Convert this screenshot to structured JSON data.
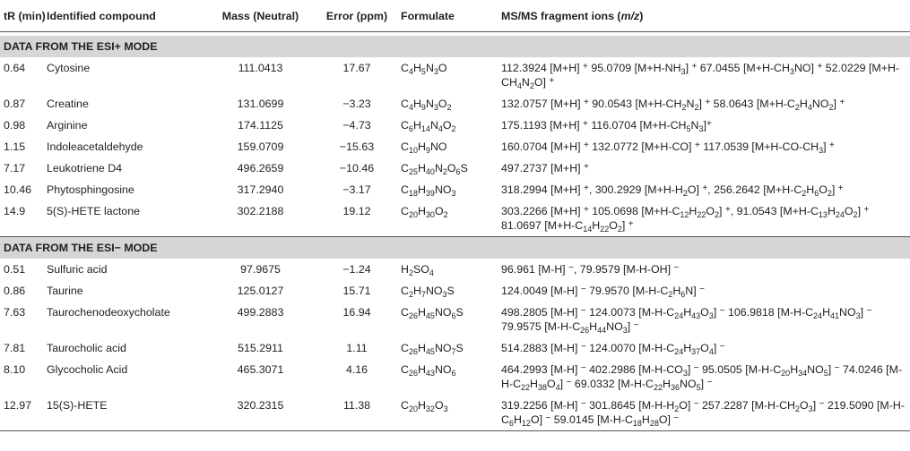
{
  "headers": {
    "tr": "tR (min)",
    "compound": "Identified compound",
    "mass": "Mass (Neutral)",
    "error": "Error (ppm)",
    "formulate": "Formulate",
    "fragments": "MS/MS fragment ions (m/z)"
  },
  "sections": [
    {
      "title": "DATA FROM THE ESI+ MODE",
      "rows": [
        {
          "tr": "0.64",
          "compound": "Cytosine",
          "mass": "111.0413",
          "error": "17.67",
          "formula": "C4H5N3O",
          "fragments": "112.3924 [M+H] + 95.0709 [M+H-NH3] + 67.0455 [M+H-CH3NO] + 52.0229 [M+H-CH4N2O] +"
        },
        {
          "tr": "0.87",
          "compound": "Creatine",
          "mass": "131.0699",
          "error": "−3.23",
          "formula": "C4H9N3O2",
          "fragments": "132.0757 [M+H] + 90.0543 [M+H-CH2N2] + 58.0643 [M+H-C2H4NO2] +"
        },
        {
          "tr": "0.98",
          "compound": "Arginine",
          "mass": "174.1125",
          "error": "−4.73",
          "formula": "C6H14N4O2",
          "fragments": "175.1193 [M+H] + 116.0704 [M+H-CH5N3]+"
        },
        {
          "tr": "1.15",
          "compound": "Indoleacetaldehyde",
          "mass": "159.0709",
          "error": "−15.63",
          "formula": "C10H9NO",
          "fragments": "160.0704 [M+H] + 132.0772 [M+H-CO] + 117.0539 [M+H-CO-CH3] +"
        },
        {
          "tr": "7.17",
          "compound": "Leukotriene D4",
          "mass": "496.2659",
          "error": "−10.46",
          "formula": "C25H40N2O6S",
          "fragments": "497.2737 [M+H] +"
        },
        {
          "tr": "10.46",
          "compound": "Phytosphingosine",
          "mass": "317.2940",
          "error": "−3.17",
          "formula": "C18H39NO3",
          "fragments": "318.2994 [M+H] +, 300.2929 [M+H-H2O] +, 256.2642 [M+H-C2H6O2] +"
        },
        {
          "tr": "14.9",
          "compound": "5(S)-HETE lactone",
          "mass": "302.2188",
          "error": "19.12",
          "formula": "C20H30O2",
          "fragments": "303.2266 [M+H] + 105.0698 [M+H-C12H22O2] +, 91.0543 [M+H-C13H24O2] + 81.0697 [M+H-C14H22O2] +"
        }
      ]
    },
    {
      "title": "DATA FROM THE ESI− MODE",
      "rows": [
        {
          "tr": "0.51",
          "compound": "Sulfuric acid",
          "mass": "97.9675",
          "error": "−1.24",
          "formula": "H2SO4",
          "fragments": "96.961 [M-H] −, 79.9579 [M-H-OH] −"
        },
        {
          "tr": "0.86",
          "compound": "Taurine",
          "mass": "125.0127",
          "error": "15.71",
          "formula": "C2H7NO3S",
          "fragments": "124.0049 [M-H] − 79.9570 [M-H-C2H6N] −"
        },
        {
          "tr": "7.63",
          "compound": "Taurochenodeoxycholate",
          "mass": "499.2883",
          "error": "16.94",
          "formula": "C26H45NO6S",
          "fragments": "498.2805 [M-H] − 124.0073 [M-H-C24H43O3] − 106.9818 [M-H-C24H41NO3] − 79.9575 [M-H-C26H44NO3] −"
        },
        {
          "tr": "7.81",
          "compound": "Taurocholic acid",
          "mass": "515.2911",
          "error": "1.11",
          "formula": "C26H45NO7S",
          "fragments": "514.2883 [M-H] − 124.0070 [M-H-C24H37O4] −"
        },
        {
          "tr": "8.10",
          "compound": "Glycocholic Acid",
          "mass": "465.3071",
          "error": "4.16",
          "formula": "C26H43NO6",
          "fragments": "464.2993 [M-H] − 402.2986 [M-H-CO3] − 95.0505 [M-H-C20H34NO5] − 74.0246 [M-H-C22H38O4] − 69.0332 [M-H-C22H36NO5] −"
        },
        {
          "tr": "12.97",
          "compound": "15(S)-HETE",
          "mass": "320.2315",
          "error": "11.38",
          "formula": "C20H32O3",
          "fragments": "319.2256 [M-H] − 301.8645 [M-H-H2O] − 257.2287 [M-H-CH2O3] − 219.5090 [M-H-C6H12O] − 59.0145 [M-H-C18H28O] −"
        }
      ]
    }
  ]
}
